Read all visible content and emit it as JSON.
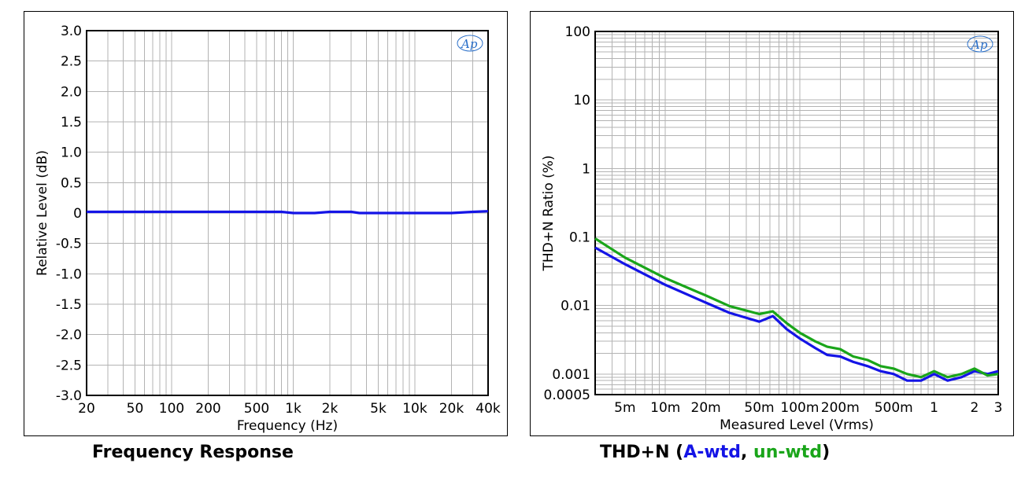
{
  "captions": {
    "left": "Frequency Response",
    "right_prefix": "THD+N (",
    "right_a": "A-wtd",
    "right_sep": ", ",
    "right_u": "un-wtd",
    "right_suffix": ")"
  },
  "logo_text": "Ap",
  "colors": {
    "a_wtd": "#1414e6",
    "un_wtd": "#1aa51a",
    "grid": "#b3b3b3"
  },
  "chart_data": [
    {
      "type": "line",
      "title": "Frequency Response",
      "xlabel": "Frequency (Hz)",
      "ylabel": "Relative Level (dB)",
      "xscale": "log",
      "xlim": [
        20,
        40000
      ],
      "ylim": [
        -3.0,
        3.0
      ],
      "grid": true,
      "x_ticks": [
        20,
        50,
        100,
        200,
        500,
        1000,
        2000,
        5000,
        10000,
        20000,
        40000
      ],
      "x_tick_labels": [
        "20",
        "50",
        "100",
        "200",
        "500",
        "1k",
        "2k",
        "5k",
        "10k",
        "20k",
        "40k"
      ],
      "y_ticks": [
        3.0,
        2.5,
        2.0,
        1.5,
        1.0,
        0.5,
        0,
        -0.5,
        -1.0,
        -1.5,
        -2.0,
        -2.5,
        -3.0
      ],
      "y_tick_labels": [
        "3.0",
        "2.5",
        "2.0",
        "1.5",
        "1.0",
        "0.5",
        "0",
        "-0.5",
        "-1.0",
        "-1.5",
        "-2.0",
        "-2.5",
        "-3.0"
      ],
      "series": [
        {
          "color": "#1414e6",
          "x": [
            20,
            50,
            100,
            200,
            500,
            800,
            1000,
            1500,
            2000,
            3000,
            3500,
            5000,
            10000,
            20000,
            30000,
            40000
          ],
          "y": [
            0.02,
            0.02,
            0.02,
            0.02,
            0.02,
            0.02,
            0.0,
            0.0,
            0.02,
            0.02,
            0.0,
            0.0,
            0.0,
            0.0,
            0.02,
            0.03
          ]
        }
      ]
    },
    {
      "type": "line",
      "title": "THD+N",
      "xlabel": "Measured Level (Vrms)",
      "ylabel": "THD+N Ratio (%)",
      "xscale": "log",
      "yscale": "log",
      "xlim": [
        0.003,
        3
      ],
      "ylim": [
        0.0005,
        100
      ],
      "grid": true,
      "x_ticks": [
        0.005,
        0.01,
        0.02,
        0.05,
        0.1,
        0.2,
        0.5,
        1,
        2,
        3
      ],
      "x_tick_labels": [
        "5m",
        "10m",
        "20m",
        "50m",
        "100m",
        "200m",
        "500m",
        "1",
        "2",
        "3"
      ],
      "y_ticks": [
        100,
        10,
        1,
        0.1,
        0.01,
        0.001,
        0.0005
      ],
      "y_tick_labels": [
        "100",
        "10",
        "1",
        "0.1",
        "0.01",
        "0.001",
        "0.0005"
      ],
      "series": [
        {
          "color": "#1414e6",
          "x": [
            0.003,
            0.005,
            0.01,
            0.02,
            0.03,
            0.05,
            0.063,
            0.08,
            0.1,
            0.13,
            0.16,
            0.2,
            0.25,
            0.32,
            0.4,
            0.5,
            0.63,
            0.8,
            1.0,
            1.26,
            1.6,
            2.0,
            2.5,
            3.0
          ],
          "y": [
            0.07,
            0.04,
            0.02,
            0.011,
            0.0078,
            0.0058,
            0.007,
            0.0045,
            0.0033,
            0.0024,
            0.0019,
            0.0018,
            0.0015,
            0.0013,
            0.0011,
            0.001,
            0.0008,
            0.0008,
            0.001,
            0.0008,
            0.0009,
            0.0011,
            0.001,
            0.0011
          ]
        },
        {
          "color": "#1aa51a",
          "x": [
            0.003,
            0.005,
            0.01,
            0.02,
            0.03,
            0.05,
            0.063,
            0.08,
            0.1,
            0.13,
            0.16,
            0.2,
            0.25,
            0.32,
            0.4,
            0.5,
            0.63,
            0.8,
            1.0,
            1.26,
            1.6,
            2.0,
            2.5,
            3.0
          ],
          "y": [
            0.095,
            0.05,
            0.025,
            0.014,
            0.0098,
            0.0075,
            0.0082,
            0.0055,
            0.004,
            0.003,
            0.0025,
            0.0023,
            0.0018,
            0.0016,
            0.0013,
            0.0012,
            0.001,
            0.0009,
            0.0011,
            0.0009,
            0.001,
            0.0012,
            0.00095,
            0.001
          ]
        }
      ]
    }
  ]
}
